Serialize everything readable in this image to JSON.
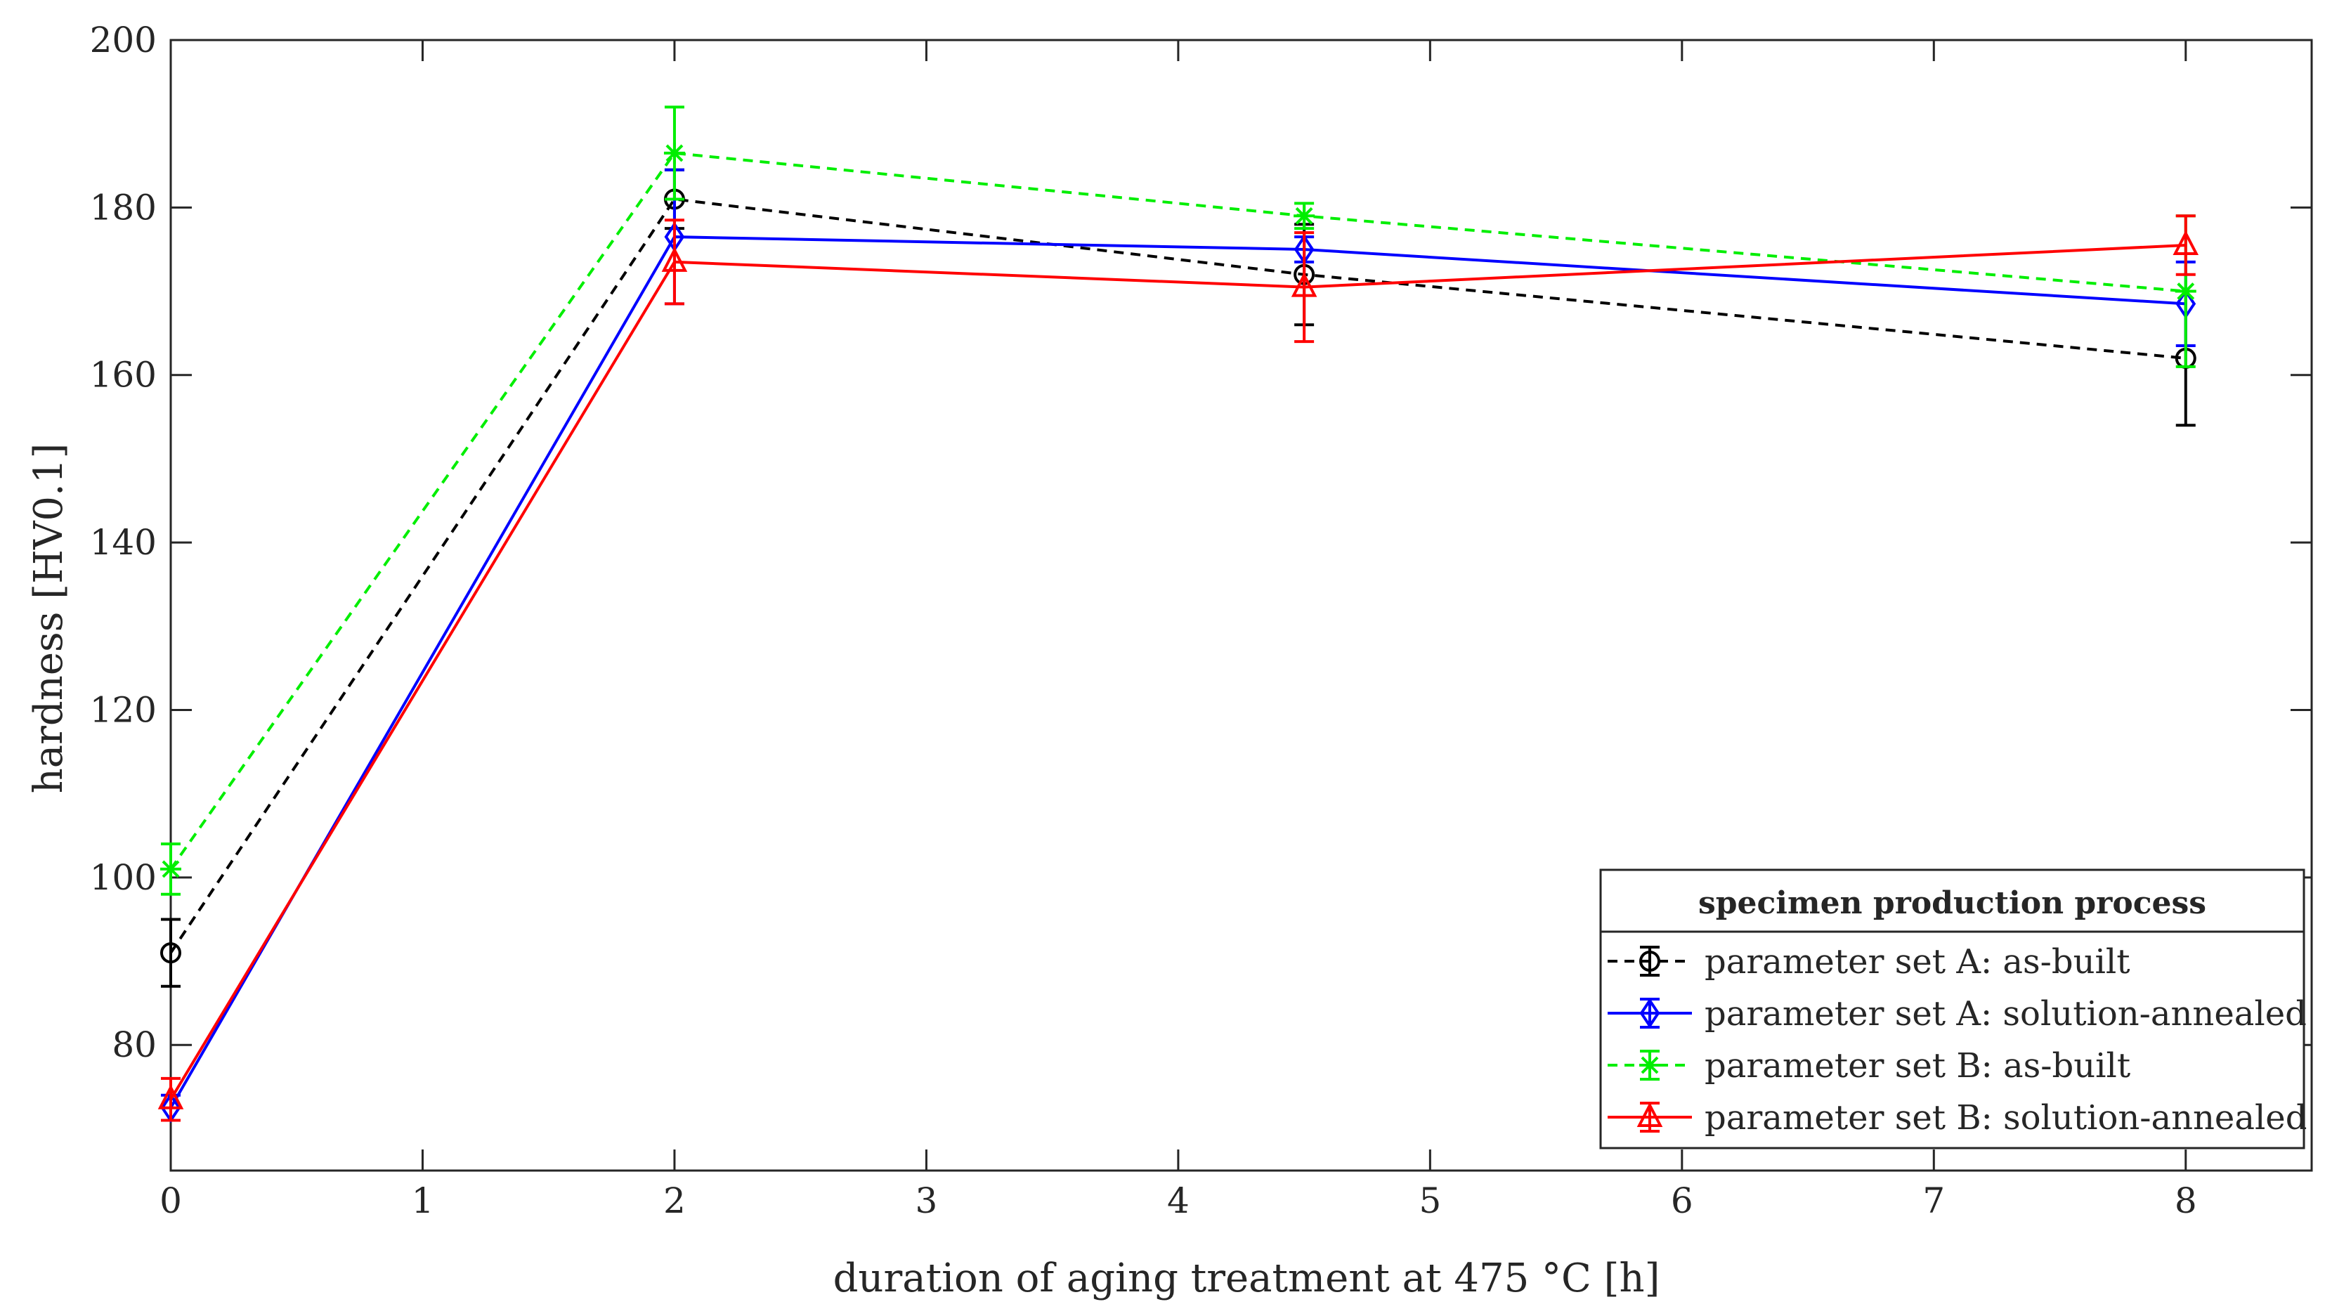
{
  "chart_data": {
    "type": "line",
    "title": "",
    "xlabel": "duration of aging treatment at 475 °C [h]",
    "ylabel": "hardness [HV0.1]",
    "xlim": [
      0,
      8.5
    ],
    "ylim": [
      65,
      200
    ],
    "xticks": [
      0,
      1,
      2,
      3,
      4,
      5,
      6,
      7,
      8
    ],
    "yticks": [
      80,
      100,
      120,
      140,
      160,
      180,
      200
    ],
    "x": [
      0,
      2,
      4.5,
      8
    ],
    "legend": {
      "title": "specimen production process",
      "position": "bottom-right"
    },
    "series": [
      {
        "name": "parameter set A: as-built",
        "color": "#000000",
        "line_style": "dashed",
        "marker": "circle",
        "values": [
          91,
          181,
          172,
          162
        ],
        "errors": [
          4,
          3.5,
          6,
          8
        ]
      },
      {
        "name": "parameter set A: solution-annealed",
        "color": "#0000ff",
        "line_style": "solid",
        "marker": "diamond",
        "values": [
          72.5,
          176.5,
          175,
          168.5
        ],
        "errors": [
          1.5,
          8,
          1.5,
          5
        ]
      },
      {
        "name": "parameter set B: as-built",
        "color": "#00ee00",
        "line_style": "dashed",
        "marker": "star",
        "values": [
          101,
          186.5,
          179,
          170
        ],
        "errors": [
          3,
          5.5,
          1.5,
          9
        ]
      },
      {
        "name": "parameter set B: solution-annealed",
        "color": "#ff0000",
        "line_style": "solid",
        "marker": "triangle",
        "values": [
          73.5,
          173.5,
          170.5,
          175.5
        ],
        "errors": [
          2.5,
          5,
          6.5,
          3.5
        ]
      }
    ]
  }
}
